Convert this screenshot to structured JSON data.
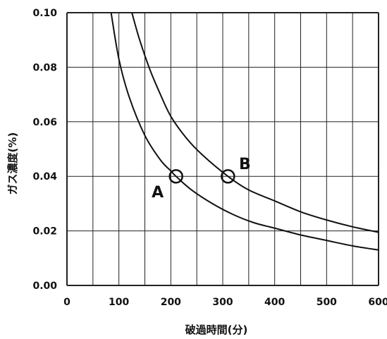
{
  "chart_data": {
    "type": "line",
    "xlabel": "破過時間(分)",
    "ylabel": "ガス濃度(%)",
    "xlim": [
      0,
      600
    ],
    "ylim": [
      0,
      0.1
    ],
    "x_ticks": [
      "0",
      "100",
      "200",
      "300",
      "400",
      "500",
      "600"
    ],
    "y_ticks": [
      "0.00",
      "0.02",
      "0.04",
      "0.06",
      "0.08",
      "0.10"
    ],
    "grid": true,
    "series": [
      {
        "x": [
          85,
          100,
          120,
          150,
          180,
          200,
          210,
          240,
          280,
          320,
          360,
          400,
          450,
          500,
          550,
          600
        ],
        "y": [
          0.1,
          0.083,
          0.069,
          0.055,
          0.046,
          0.042,
          0.04,
          0.035,
          0.03,
          0.026,
          0.023,
          0.021,
          0.0185,
          0.0165,
          0.0145,
          0.013
        ]
      },
      {
        "x": [
          125,
          140,
          160,
          180,
          200,
          230,
          260,
          310,
          350,
          400,
          450,
          500,
          550,
          600
        ],
        "y": [
          0.1,
          0.09,
          0.079,
          0.07,
          0.062,
          0.054,
          0.048,
          0.04,
          0.035,
          0.031,
          0.027,
          0.024,
          0.0215,
          0.0195
        ]
      }
    ],
    "annotations": [
      {
        "label": "A",
        "x": 210,
        "y": 0.04
      },
      {
        "label": "B",
        "x": 310,
        "y": 0.04
      }
    ]
  }
}
